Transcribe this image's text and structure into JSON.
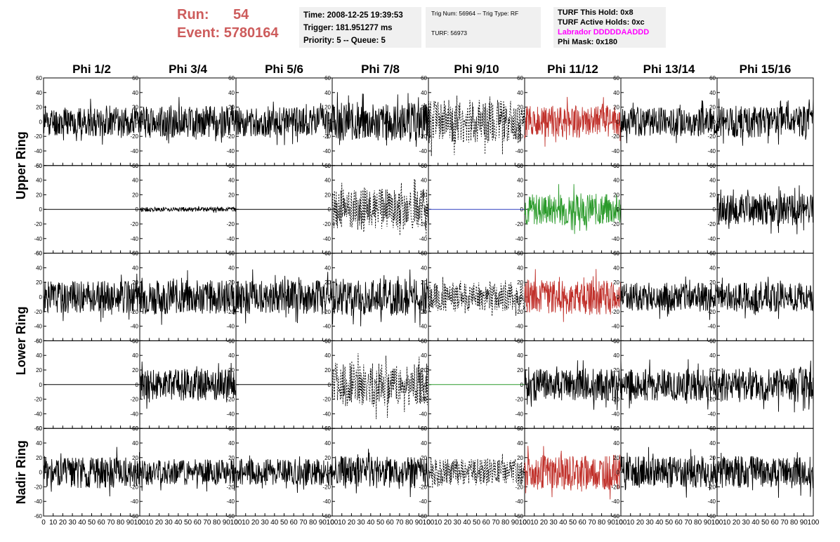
{
  "header": {
    "run_label": "Run:",
    "run_value": "54",
    "event_label": "Event:",
    "event_value": "5780164"
  },
  "time_panel": {
    "time": "Time: 2008-12-25 19:39:53",
    "trigger": "Trigger: 181.951277 ms",
    "priority": "Priority: 5 -- Queue: 5"
  },
  "trig_panel": {
    "trig": "Trig Num: 56964 -- Trig Type: RF",
    "turf": "TURF: 56973"
  },
  "turf_panel": {
    "this_hold": "TURF This Hold: 0x8",
    "active_holds": "TURF Active Holds: 0xc",
    "labrador": "Labrador DDDDDAADDD",
    "phi_mask": "Phi Mask: 0x180"
  },
  "chart_data": {
    "type": "line",
    "columns": [
      "Phi 1/2",
      "Phi 3/4",
      "Phi 5/6",
      "Phi 7/8",
      "Phi 9/10",
      "Phi 11/12",
      "Phi 13/14",
      "Phi 15/16"
    ],
    "ring_labels": [
      "Upper Ring",
      "Lower Ring",
      "Nadir Ring"
    ],
    "xlim": [
      0,
      100
    ],
    "ylim": [
      -60,
      60
    ],
    "x_ticks": [
      "0",
      "10",
      "20",
      "30",
      "40",
      "50",
      "60",
      "70",
      "80",
      "90",
      "100"
    ],
    "y_ticks": [
      "60",
      "40",
      "20",
      "0",
      "-20",
      "-40",
      "-60"
    ],
    "colors": {
      "normal": "#000000",
      "red": "#c0302a",
      "green": "#2a9a2a",
      "blue": "#3040c0"
    },
    "rows": [
      [
        {
          "style": "solid",
          "color": "normal",
          "amp": 20,
          "seed": 11
        },
        {
          "style": "solid",
          "color": "normal",
          "amp": 22,
          "seed": 12
        },
        {
          "style": "solid",
          "color": "normal",
          "amp": 20,
          "seed": 13
        },
        {
          "style": "solid",
          "color": "normal",
          "amp": 26,
          "seed": 14
        },
        {
          "style": "dashed",
          "color": "normal",
          "amp": 30,
          "seed": 15
        },
        {
          "style": "solid",
          "color": "red",
          "amp": 22,
          "seed": 16
        },
        {
          "style": "solid",
          "color": "normal",
          "amp": 20,
          "seed": 17
        },
        {
          "style": "solid",
          "color": "normal",
          "amp": 22,
          "seed": 18
        }
      ],
      [
        {
          "style": "flat",
          "color": "normal",
          "amp": 0,
          "seed": 21
        },
        {
          "style": "solid",
          "color": "normal",
          "amp": 3,
          "seed": 22
        },
        {
          "style": "flat",
          "color": "normal",
          "amp": 0,
          "seed": 23
        },
        {
          "style": "dashed",
          "color": "normal",
          "amp": 28,
          "seed": 24
        },
        {
          "style": "flat",
          "color": "blue",
          "amp": 0,
          "seed": 25
        },
        {
          "style": "solid",
          "color": "green",
          "amp": 22,
          "seed": 26
        },
        {
          "style": "flat",
          "color": "normal",
          "amp": 0,
          "seed": 27
        },
        {
          "style": "solid",
          "color": "normal",
          "amp": 22,
          "seed": 28
        }
      ],
      [
        {
          "style": "solid",
          "color": "normal",
          "amp": 22,
          "seed": 31
        },
        {
          "style": "solid",
          "color": "normal",
          "amp": 24,
          "seed": 32
        },
        {
          "style": "solid",
          "color": "normal",
          "amp": 24,
          "seed": 33
        },
        {
          "style": "solid",
          "color": "normal",
          "amp": 26,
          "seed": 34
        },
        {
          "style": "dashed",
          "color": "normal",
          "amp": 20,
          "seed": 35
        },
        {
          "style": "solid",
          "color": "red",
          "amp": 24,
          "seed": 36
        },
        {
          "style": "solid",
          "color": "normal",
          "amp": 20,
          "seed": 37
        },
        {
          "style": "solid",
          "color": "normal",
          "amp": 20,
          "seed": 38
        }
      ],
      [
        {
          "style": "flat",
          "color": "normal",
          "amp": 0,
          "seed": 41
        },
        {
          "style": "solid",
          "color": "normal",
          "amp": 22,
          "seed": 42
        },
        {
          "style": "flat",
          "color": "normal",
          "amp": 0,
          "seed": 43
        },
        {
          "style": "dashed",
          "color": "normal",
          "amp": 30,
          "seed": 44
        },
        {
          "style": "flat",
          "color": "green",
          "amp": 0,
          "seed": 45
        },
        {
          "style": "solid",
          "color": "normal",
          "amp": 22,
          "seed": 46
        },
        {
          "style": "solid",
          "color": "normal",
          "amp": 22,
          "seed": 47
        },
        {
          "style": "solid",
          "color": "normal",
          "amp": 24,
          "seed": 48
        }
      ],
      [
        {
          "style": "solid",
          "color": "normal",
          "amp": 22,
          "seed": 51
        },
        {
          "style": "solid",
          "color": "normal",
          "amp": 18,
          "seed": 52
        },
        {
          "style": "solid",
          "color": "normal",
          "amp": 18,
          "seed": 53
        },
        {
          "style": "solid",
          "color": "normal",
          "amp": 22,
          "seed": 54
        },
        {
          "style": "dashed",
          "color": "normal",
          "amp": 18,
          "seed": 55
        },
        {
          "style": "solid",
          "color": "red",
          "amp": 24,
          "seed": 56
        },
        {
          "style": "solid",
          "color": "normal",
          "amp": 22,
          "seed": 57
        },
        {
          "style": "solid",
          "color": "normal",
          "amp": 22,
          "seed": 58
        }
      ]
    ]
  }
}
